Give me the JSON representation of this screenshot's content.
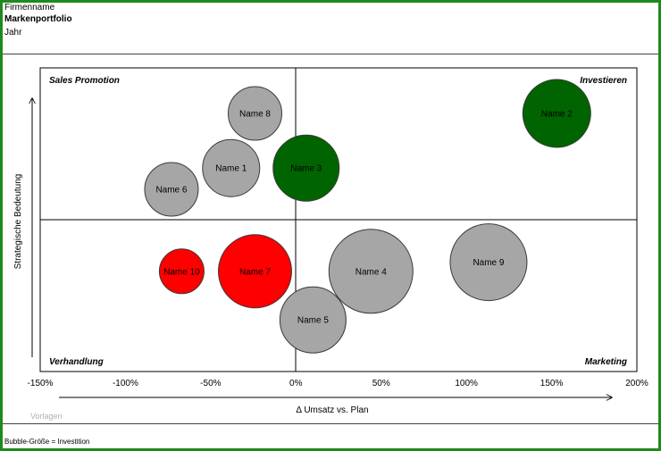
{
  "header": {
    "company": "Firmenname",
    "title": "Markenportfolio",
    "year": "Jahr"
  },
  "footer": {
    "note": "Bubble-Größe = Investition",
    "watermark": "Vorlagen"
  },
  "colors": {
    "frame": "#1e8a1e",
    "grey": "#a6a6a6",
    "green": "#006400",
    "red": "#ff0000"
  },
  "chart_data": {
    "type": "scatter",
    "subtype": "bubble",
    "xlabel": "Δ Umsatz vs. Plan",
    "ylabel": "Strategische Bedeutung",
    "xlim": [
      -150,
      200
    ],
    "x_ticks": [
      "-150%",
      "-100%",
      "-50%",
      "0%",
      "50%",
      "100%",
      "150%",
      "200%"
    ],
    "x_tick_values": [
      -150,
      -100,
      -50,
      0,
      50,
      100,
      150,
      200
    ],
    "ylim": [
      0,
      100
    ],
    "quadrants": {
      "top_left": "Sales Promotion",
      "top_right": "Investieren",
      "bottom_left": "Verhandlung",
      "bottom_right": "Marketing"
    },
    "points": [
      {
        "name": "Name 1",
        "x": -38,
        "y": 67,
        "size": 32,
        "color": "grey"
      },
      {
        "name": "Name 2",
        "x": 153,
        "y": 85,
        "size": 38,
        "color": "green"
      },
      {
        "name": "Name 3",
        "x": 6,
        "y": 67,
        "size": 37,
        "color": "green"
      },
      {
        "name": "Name 4",
        "x": 44,
        "y": 33,
        "size": 47,
        "color": "grey"
      },
      {
        "name": "Name 5",
        "x": 10,
        "y": 17,
        "size": 37,
        "color": "grey"
      },
      {
        "name": "Name 6",
        "x": -73,
        "y": 60,
        "size": 30,
        "color": "grey"
      },
      {
        "name": "Name 7",
        "x": -24,
        "y": 33,
        "size": 41,
        "color": "red"
      },
      {
        "name": "Name 8",
        "x": -24,
        "y": 85,
        "size": 30,
        "color": "grey"
      },
      {
        "name": "Name 9",
        "x": 113,
        "y": 36,
        "size": 43,
        "color": "grey"
      },
      {
        "name": "Name 10",
        "x": -67,
        "y": 33,
        "size": 25,
        "color": "red"
      }
    ]
  }
}
